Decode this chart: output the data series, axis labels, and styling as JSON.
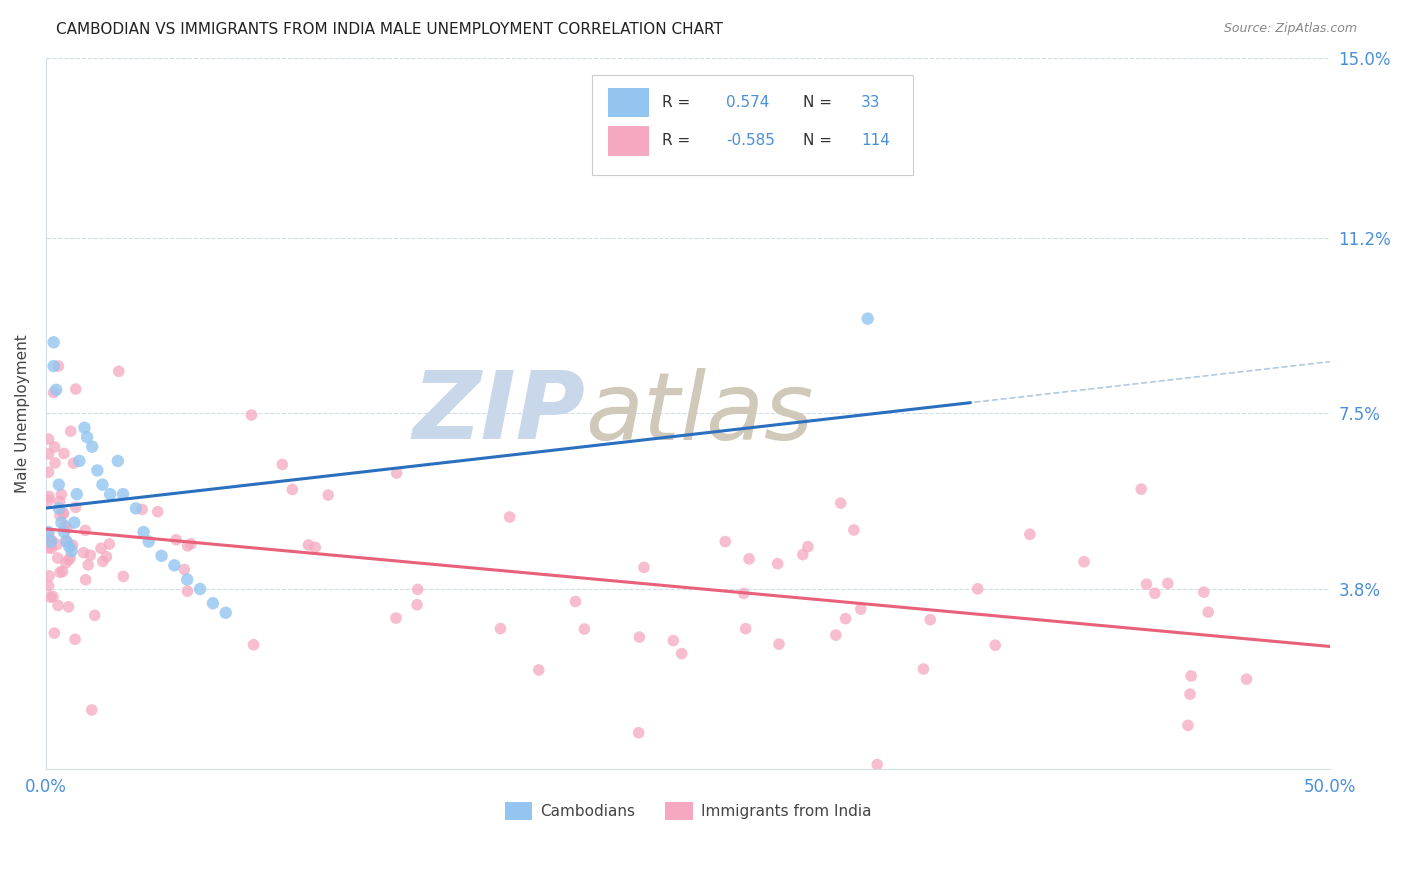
{
  "title": "CAMBODIAN VS IMMIGRANTS FROM INDIA MALE UNEMPLOYMENT CORRELATION CHART",
  "source": "Source: ZipAtlas.com",
  "ylabel": "Male Unemployment",
  "xlim": [
    0.0,
    0.5
  ],
  "ylim": [
    0.0,
    0.15
  ],
  "ytick_positions": [
    0.038,
    0.075,
    0.112,
    0.15
  ],
  "ytick_labels": [
    "3.8%",
    "7.5%",
    "11.2%",
    "15.0%"
  ],
  "cambodian_R": 0.574,
  "cambodian_N": 33,
  "india_R": -0.585,
  "india_N": 114,
  "blue_color": "#93C5F0",
  "pink_color": "#F5A8C0",
  "blue_line_color": "#2B6FBF",
  "pink_line_color": "#E8607A",
  "dashed_line_color": "#A8C4E0",
  "grid_color": "#D0DDE8",
  "text_color": "#444444",
  "blue_label_color": "#4A90D9",
  "watermark_zip_color": "#C8D8EA",
  "watermark_atlas_color": "#D0C8B8"
}
